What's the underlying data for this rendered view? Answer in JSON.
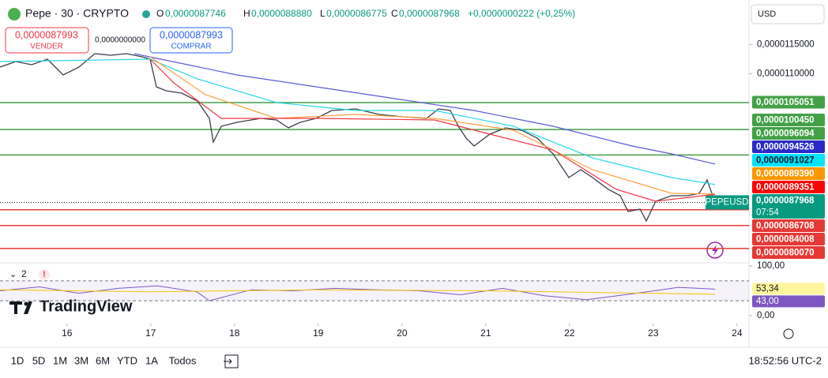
{
  "header": {
    "symbol": "Pepe · 30 · CRYPTO",
    "o_key": "O",
    "o": "0,0000087746",
    "h_key": "H",
    "h": "0,0000088880",
    "l_key": "L",
    "l": "0,0000086775",
    "c_key": "C",
    "c": "0,0000087968",
    "change": "+0,0000000222 (+0,25%)"
  },
  "trade": {
    "sell_price": "0,0000087993",
    "sell": "VENDER",
    "spread": "0,0000000000",
    "buy_price": "0,0000087993",
    "buy": "COMPRAR"
  },
  "currency": "USD",
  "chart_data": {
    "type": "line",
    "xlim": [
      15.2,
      24.143
    ],
    "xticks": [
      16,
      17,
      18,
      19,
      20,
      21,
      22,
      23,
      24
    ],
    "ylim": [
      7.803e-06,
      1.1857e-05
    ],
    "yticks": [
      {
        "value": 1.15e-05,
        "label": "0,0000115000"
      },
      {
        "value": 1.1e-05,
        "label": "0,0000110000"
      }
    ],
    "grid": false,
    "series": [
      {
        "color": "#3a3f4b",
        "symbol": "PEPEUSD",
        "countdown": "07:54",
        "last_label": "0,0000087968",
        "label_color": "#089981",
        "x": [
          15.2,
          15.389,
          15.577,
          15.766,
          15.955,
          16.143,
          16.332,
          16.521,
          16.709,
          16.898,
          16.992,
          17.068,
          17.181,
          17.37,
          17.558,
          17.7,
          17.747,
          17.842,
          18.03,
          18.313,
          18.502,
          18.643,
          18.785,
          18.974,
          19.162,
          19.445,
          19.728,
          20.011,
          20.294,
          20.436,
          20.577,
          20.672,
          20.766,
          20.86,
          21.049,
          21.238,
          21.426,
          21.615,
          21.804,
          21.992,
          22.134,
          22.275,
          22.464,
          22.606,
          22.7,
          22.842,
          22.917,
          23.03,
          23.219,
          23.408,
          23.549,
          23.643,
          23.738
        ],
        "values": [
          1.1114e-05,
          1.1208e-05,
          1.1154e-05,
          1.1249e-05,
          1.0978e-05,
          1.1114e-05,
          1.1343e-05,
          1.1316e-05,
          1.1343e-05,
          1.1289e-05,
          1.1249e-05,
          1.0776e-05,
          1.0708e-05,
          1.0668e-05,
          1.0532e-05,
          1.0235e-05,
          9.83e-06,
          1.01e-05,
          1.0168e-05,
          1.0235e-05,
          1.0208e-05,
          1.0073e-05,
          1.0168e-05,
          1.0235e-05,
          1.037e-05,
          1.0397e-05,
          1.0303e-05,
          1.0262e-05,
          1.0235e-05,
          1.0397e-05,
          1.037e-05,
          1.01e-05,
          9.897e-06,
          9.762e-06,
          9.965e-06,
          1.0073e-05,
          1.0032e-05,
          9.897e-06,
          9.627e-06,
          9.222e-06,
          9.357e-06,
          9.222e-06,
          9.019e-06,
          8.911e-06,
          8.641e-06,
          8.681e-06,
          8.478e-06,
          8.816e-06,
          8.911e-06,
          8.911e-06,
          8.951e-06,
          9.181e-06,
          8.7968e-06
        ]
      },
      {
        "color": "#5b5bd6",
        "last_label": "0,0000094526",
        "label_color": "#2a2ac8",
        "x": [
          16.804,
          18.03,
          18.974,
          19.917,
          20.86,
          21.804,
          22.747,
          23.219,
          23.738
        ],
        "values": [
          1.1343e-05,
          1.0978e-05,
          1.0776e-05,
          1.0573e-05,
          1.037e-05,
          1.01e-05,
          9.762e-06,
          9.627e-06,
          9.4526e-06
        ]
      },
      {
        "color": "#26d7e8",
        "last_label": "0,0000091027",
        "label_color": "#00e5ff",
        "x": [
          15.2,
          16.992,
          17.558,
          18.502,
          19.445,
          20.389,
          21.332,
          22.275,
          23.219,
          23.738
        ],
        "values": [
          1.1208e-05,
          1.1249e-05,
          1.0911e-05,
          1.0505e-05,
          1.037e-05,
          1.037e-05,
          1.01e-05,
          9.559e-06,
          9.222e-06,
          9.1027e-06
        ]
      },
      {
        "color": "#ff9f40",
        "last_label": "0,0000089390",
        "label_color": "#ff9800",
        "x": [
          16.992,
          17.653,
          18.502,
          19.445,
          20.389,
          21.332,
          22.275,
          23.219,
          23.738
        ],
        "values": [
          1.1289e-05,
          1.0641e-05,
          1.0235e-05,
          1.0303e-05,
          1.0235e-05,
          1.0032e-05,
          9.357e-06,
          8.951e-06,
          8.939e-06
        ]
      },
      {
        "color": "#f23645",
        "last_label": "0,0000089351",
        "label_color": "#ff0000",
        "x": [
          16.992,
          17.275,
          17.842,
          18.974,
          20.389,
          21.049,
          21.804,
          22.558,
          23.03,
          23.738
        ],
        "values": [
          1.1249e-05,
          1.0843e-05,
          1.0235e-05,
          1.0235e-05,
          1.0208e-05,
          9.965e-06,
          9.695e-06,
          9.019e-06,
          8.816e-06,
          8.9351e-06
        ]
      }
    ],
    "levels": [
      {
        "value": 1.05051e-05,
        "label": "0,0000105051",
        "color": "#43a047"
      },
      {
        "value": 1.0045e-05,
        "label": "0,0000100450",
        "color": "#43a047"
      },
      {
        "value": 9.6094e-06,
        "label": "0,0000096094",
        "color": "#43a047"
      },
      {
        "value": 8.6708e-06,
        "label": "0,0000086708",
        "color": "#e53935"
      },
      {
        "value": 8.4008e-06,
        "label": "0,0000084008",
        "color": "#e53935"
      },
      {
        "value": 8.007e-06,
        "label": "0,0000080070",
        "color": "#e53935"
      }
    ]
  },
  "rsi": {
    "count": "2",
    "ylim": [
      0,
      100
    ],
    "yticks": [
      {
        "value": 100,
        "label": "100,00"
      },
      {
        "value": 0,
        "label": "0,00"
      }
    ],
    "bands": [
      70,
      30
    ],
    "series": [
      {
        "color": "#7e57c2",
        "last_label": "53,34",
        "label_color": "#fff59d",
        "x": [
          15.2,
          15.67,
          16.14,
          16.61,
          17.08,
          17.55,
          17.7,
          18.2,
          18.7,
          19.2,
          19.7,
          20.2,
          20.7,
          21.2,
          21.7,
          22.2,
          22.8,
          23.3,
          23.738
        ],
        "values": [
          50,
          58,
          45,
          55,
          60,
          48,
          30,
          52,
          50,
          55,
          52,
          50,
          42,
          55,
          40,
          32,
          45,
          57,
          53.34
        ]
      },
      {
        "color": "#f5c400",
        "last_label": "43,00",
        "label_color": "#7e57c2",
        "x": [
          15.2,
          17,
          19,
          21,
          23.738
        ],
        "values": [
          52,
          48,
          52,
          50,
          43
        ]
      }
    ]
  },
  "brand": "TradingView",
  "ranges": [
    "1D",
    "5D",
    "1M",
    "3M",
    "6M",
    "YTD",
    "1A",
    "Todos"
  ],
  "clock": "18:52:56 UTC-2"
}
